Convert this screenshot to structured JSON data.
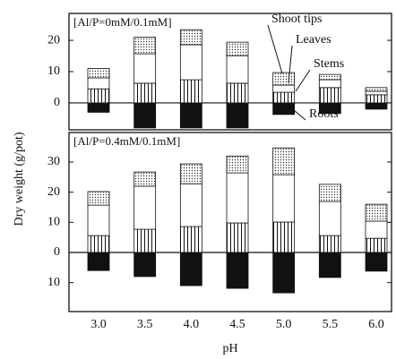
{
  "chart_data": [
    {
      "type": "bar",
      "title": "[Al/P=0mM/0.1mM]",
      "ylim": [
        -8.6,
        28.6
      ],
      "yticks": [
        0,
        10,
        20
      ],
      "series": [
        {
          "name": "Stems",
          "color": "#ffffff",
          "pattern": "vertical-lines",
          "values": [
            4.5,
            6.3,
            7.4,
            6.3,
            3.4,
            4.9,
            2.6
          ]
        },
        {
          "name": "Leaves",
          "color": "#ffffff",
          "pattern": "none",
          "values": [
            3.5,
            9.4,
            11.2,
            8.8,
            2.3,
            2.5,
            1.1
          ]
        },
        {
          "name": "Shoot tips",
          "color": "#ffffff",
          "pattern": "dots",
          "values": [
            3,
            5.3,
            4.8,
            4.3,
            4.0,
            1.7,
            1.2
          ]
        },
        {
          "name": "Roots",
          "color": "#111111",
          "pattern": "none",
          "values": [
            -3,
            -8,
            -8,
            -8,
            -3.7,
            -3.4,
            -2
          ]
        }
      ]
    },
    {
      "type": "bar",
      "title": "[Al/P=0.4mM/0.1mM]",
      "categories": [
        "3.0",
        "3.5",
        "4.0",
        "4.5",
        "5.0",
        "5.5",
        "6.0"
      ],
      "xlabel": "pH",
      "ylabel": "Dry weight (g/pot)",
      "ylim": [
        -19.6,
        39.8
      ],
      "yticks": [
        {
          "value": -10,
          "label": "10"
        },
        0,
        10,
        20,
        30
      ],
      "series": [
        {
          "color": "#ffffff",
          "pattern": "vertical-lines",
          "values": [
            5.6,
            7.7,
            8.6,
            9.8,
            10.1,
            5.6,
            4.7
          ]
        },
        {
          "color": "#ffffff",
          "pattern": "none",
          "values": [
            10.1,
            14.3,
            14.2,
            16.6,
            15.7,
            11.3,
            5.7
          ]
        },
        {
          "color": "#ffffff",
          "pattern": "dots",
          "values": [
            4.5,
            4.7,
            6.6,
            5.6,
            8.9,
            5.7,
            5.6
          ]
        },
        {
          "color": "#111111",
          "pattern": "none",
          "values": [
            -6,
            -8,
            -11,
            -11.9,
            -13.4,
            -8.3,
            -6.2
          ]
        }
      ]
    }
  ]
}
